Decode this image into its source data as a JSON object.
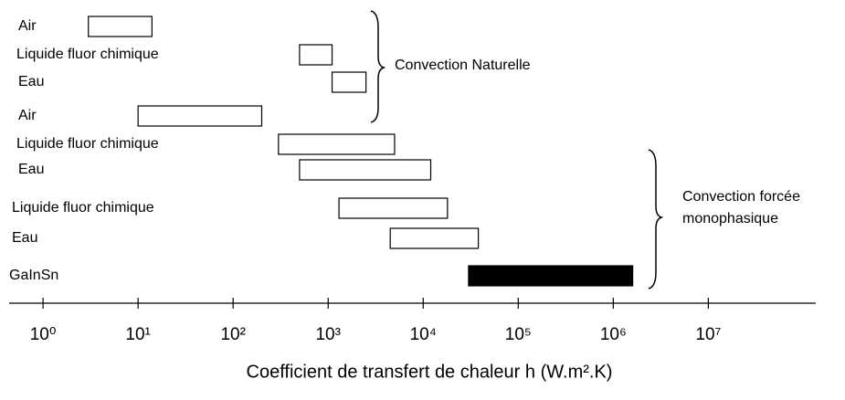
{
  "chart_data": {
    "type": "range-bar",
    "categories": [
      "Air",
      "Liquide fluor chimique",
      "Eau",
      "Air",
      "Liquide fluor chimique",
      "Eau",
      "Liquide fluor chimique",
      "Eau",
      "GaInSn"
    ],
    "low": [
      3,
      500,
      1100,
      10,
      300,
      500,
      1300,
      4500,
      30000
    ],
    "high": [
      14,
      1100,
      2500,
      200,
      5000,
      12000,
      18000,
      38000,
      1600000
    ],
    "colors": [
      "#ffffff",
      "#ffffff",
      "#ffffff",
      "#ffffff",
      "#ffffff",
      "#ffffff",
      "#ffffff",
      "#ffffff",
      "#000000"
    ],
    "xlog": true,
    "xlim": [
      0.44,
      135000000
    ],
    "xticks": [
      {
        "value": 1,
        "label": "10⁰"
      },
      {
        "value": 10,
        "label": "10¹"
      },
      {
        "value": 100,
        "label": "10²"
      },
      {
        "value": 1000,
        "label": "10³"
      },
      {
        "value": 10000,
        "label": "10⁴"
      },
      {
        "value": 100000,
        "label": "10⁵"
      },
      {
        "value": 1000000,
        "label": "10⁶"
      },
      {
        "value": 10000000,
        "label": "10⁷"
      }
    ],
    "xlabel": "Coefficient de transfert de chaleur h (W.m².K)",
    "annotations": [
      "Convection Naturelle",
      "Convection forcée",
      "monophasique"
    ]
  }
}
